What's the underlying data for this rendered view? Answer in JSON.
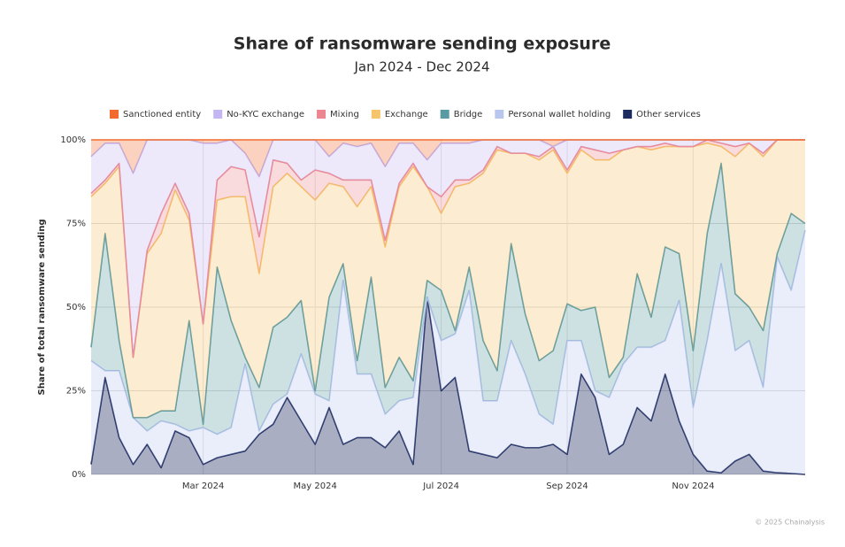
{
  "chart_data": {
    "type": "stacked_area",
    "title": "Share of ransomware sending exposure",
    "subtitle": "Jan 2024 - Dec 2024",
    "y_label": "Share of total ransomware sending",
    "source": "© 2025 Chainalysis",
    "categories": [
      null,
      null,
      null,
      null,
      null,
      null,
      null,
      null,
      "Mar 2024",
      null,
      null,
      null,
      null,
      null,
      null,
      null,
      "May 2024",
      null,
      null,
      null,
      null,
      null,
      null,
      null,
      null,
      "Jul 2024",
      null,
      null,
      null,
      null,
      null,
      null,
      null,
      null,
      "Sep 2024",
      null,
      null,
      null,
      null,
      null,
      null,
      null,
      null,
      "Nov 2024",
      null,
      null,
      null,
      null,
      null,
      null,
      null,
      null
    ],
    "ylim": [
      0,
      100
    ],
    "yticks": [
      {
        "value": 0,
        "label": "0%"
      },
      {
        "value": 25,
        "label": "25%"
      },
      {
        "value": 50,
        "label": "50%"
      },
      {
        "value": 75,
        "label": "75%"
      },
      {
        "value": 100,
        "label": "100%"
      }
    ],
    "grid": true,
    "legend": "top",
    "series": [
      {
        "name": "Sanctioned entity",
        "color": "#f26a2e",
        "values": [
          5,
          1,
          1,
          10,
          0,
          0,
          0,
          0,
          1,
          1,
          0,
          4,
          11,
          0,
          0,
          0,
          0,
          5,
          1,
          2,
          1,
          8,
          1,
          1,
          6,
          1,
          1,
          1,
          0,
          0,
          0,
          0,
          0,
          2,
          0,
          0,
          0,
          0,
          0,
          0,
          0,
          0,
          0,
          0,
          0,
          0,
          0,
          0,
          0,
          0,
          0,
          0
        ]
      },
      {
        "name": "No-KYC exchange",
        "color": "#c3b6f2",
        "values": [
          11,
          11,
          6,
          55,
          33,
          22,
          13,
          22,
          54,
          11,
          8,
          5,
          18,
          6,
          7,
          12,
          9,
          5,
          11,
          10,
          11,
          22,
          12,
          6,
          8,
          16,
          11,
          11,
          9,
          2,
          4,
          4,
          5,
          0,
          9,
          2,
          3,
          4,
          3,
          2,
          2,
          1,
          2,
          2,
          0,
          1,
          2,
          1,
          4,
          0,
          0,
          0
        ]
      },
      {
        "name": "Mixing",
        "color": "#ec8690",
        "values": [
          1,
          1,
          1,
          0,
          1,
          6,
          2,
          2,
          0,
          6,
          9,
          8,
          11,
          8,
          3,
          2,
          9,
          3,
          2,
          8,
          2,
          2,
          1,
          1,
          0,
          5,
          2,
          1,
          1,
          1,
          0,
          0,
          1,
          1,
          1,
          1,
          3,
          2,
          0,
          0,
          1,
          1,
          0,
          0,
          1,
          1,
          3,
          0,
          1,
          0,
          0,
          0
        ]
      },
      {
        "name": "Exchange",
        "color": "#f6c46a",
        "values": [
          45,
          15,
          52,
          18,
          49,
          53,
          66,
          30,
          30,
          20,
          37,
          48,
          34,
          42,
          43,
          34,
          57,
          34,
          23,
          46,
          27,
          42,
          51,
          64,
          28,
          23,
          43,
          25,
          50,
          66,
          27,
          48,
          60,
          60,
          39,
          48,
          44,
          65,
          62,
          38,
          50,
          30,
          32,
          61,
          27,
          5,
          41,
          49,
          52,
          34,
          22,
          25
        ]
      },
      {
        "name": "Bridge",
        "color": "#5a9aa3",
        "values": [
          4,
          41,
          9,
          0,
          4,
          3,
          4,
          33,
          1,
          50,
          32,
          2,
          13,
          23,
          23,
          16,
          1,
          31,
          5,
          4,
          29,
          8,
          13,
          5,
          5,
          15,
          1,
          7,
          18,
          9,
          29,
          18,
          16,
          22,
          11,
          9,
          25,
          6,
          2,
          22,
          9,
          28,
          14,
          17,
          32,
          30,
          17,
          10,
          17,
          1,
          23,
          2
        ]
      },
      {
        "name": "Personal wallet holding",
        "color": "#b9c6ee",
        "values": [
          31,
          2,
          20,
          14,
          4,
          14,
          2,
          2,
          11,
          7,
          8,
          26,
          1,
          6,
          1,
          20,
          15,
          2,
          49,
          19,
          19,
          10,
          9,
          20,
          0,
          15,
          13,
          48,
          16,
          17,
          31,
          22,
          10,
          6,
          34,
          10,
          2,
          17,
          24,
          18,
          22,
          10,
          36,
          14,
          39,
          62.5,
          33,
          34,
          25,
          64.5,
          54.7,
          73
        ]
      },
      {
        "name": "Other services",
        "color": "#1e2b5e",
        "values": [
          3,
          29,
          11,
          3,
          9,
          2,
          13,
          11,
          3,
          5,
          6,
          7,
          12,
          15,
          23,
          16,
          9,
          20,
          9,
          11,
          11,
          8,
          13,
          3,
          53,
          25,
          29,
          7,
          6,
          5,
          9,
          8,
          8,
          9,
          6,
          30,
          23,
          6,
          9,
          20,
          16,
          30,
          16,
          6,
          1,
          0.5,
          4,
          6,
          1,
          0.5,
          0.3,
          0
        ]
      }
    ]
  }
}
